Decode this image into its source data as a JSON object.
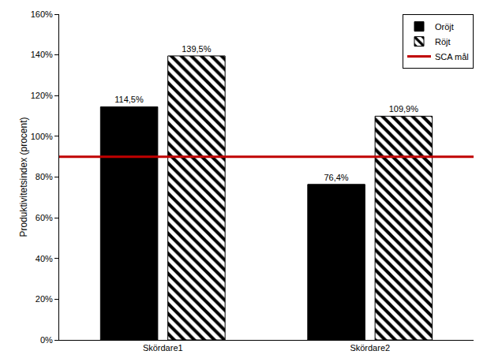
{
  "chart_data": {
    "type": "bar",
    "categories": [
      "Skördare1",
      "Skördare2"
    ],
    "series": [
      {
        "name": "Oröjt",
        "color": "#000000",
        "marker": "solid",
        "values": [
          114.5,
          76.4
        ],
        "value_labels": [
          "114,5%",
          "76,4%"
        ]
      },
      {
        "name": "Röjt",
        "color": "#000000",
        "marker": "hatched",
        "values": [
          139.5,
          109.9
        ],
        "value_labels": [
          "139,5%",
          "109,9%"
        ]
      },
      {
        "name": "SCA mål",
        "type": "line",
        "color": "#c00000",
        "values": [
          90,
          90
        ]
      }
    ],
    "y_label": "Produktivitetsindex (procent)",
    "ylim": [
      0,
      160
    ],
    "yticks": [
      {
        "value": 0,
        "label": "0%"
      },
      {
        "value": 20,
        "label": "20%"
      },
      {
        "value": 40,
        "label": "40%"
      },
      {
        "value": 60,
        "label": "60%"
      },
      {
        "value": 80,
        "label": "80%"
      },
      {
        "value": 100,
        "label": "100%"
      },
      {
        "value": 120,
        "label": "120%"
      },
      {
        "value": 140,
        "label": "140%"
      },
      {
        "value": 160,
        "label": "160%"
      }
    ],
    "grid": false,
    "legend": "upper right",
    "data_labels": true
  }
}
